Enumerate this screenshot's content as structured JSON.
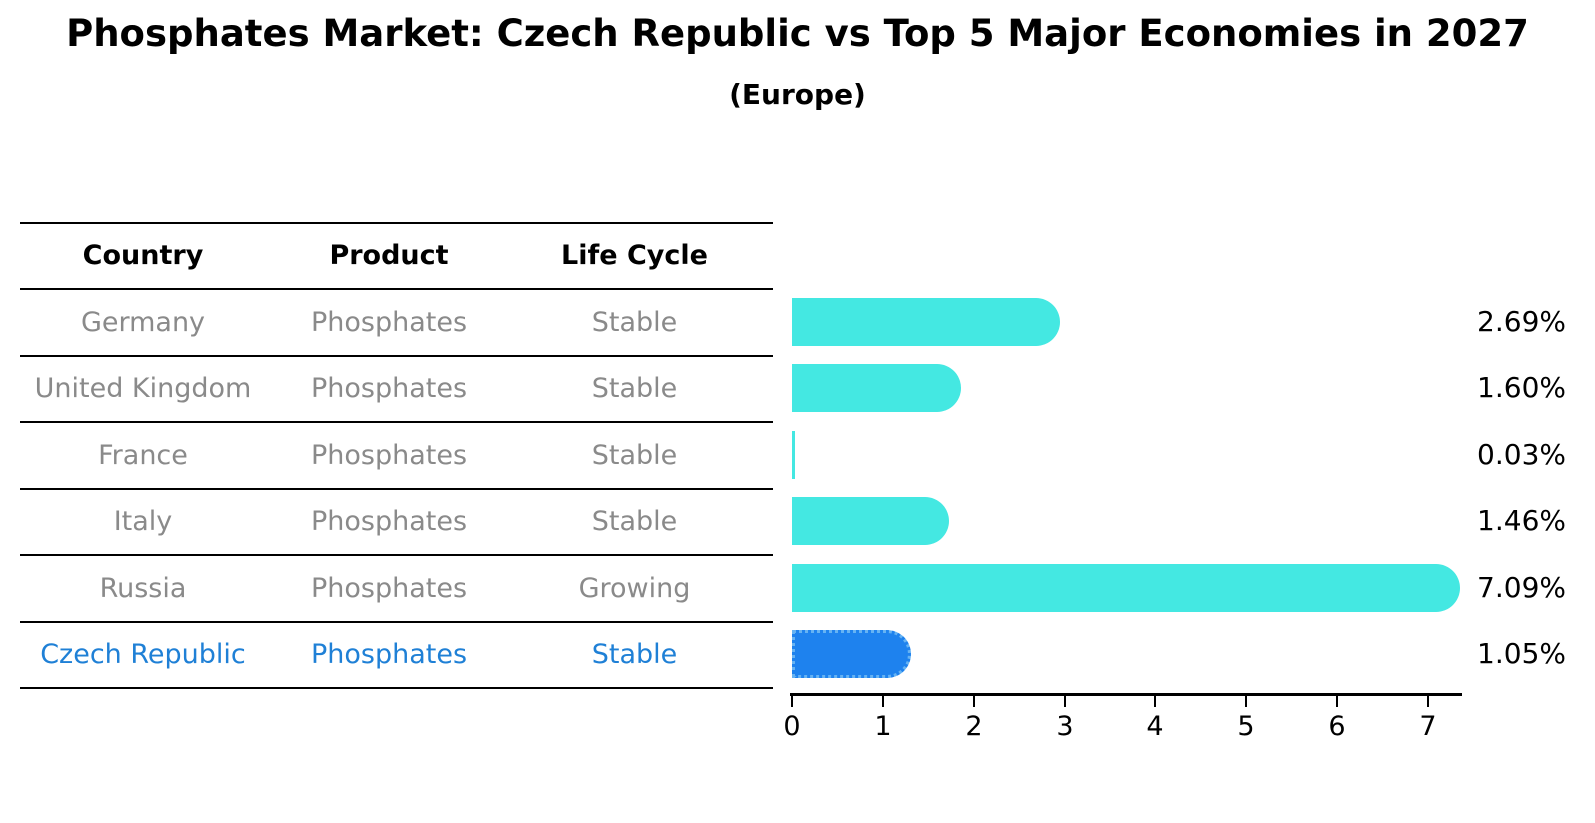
{
  "header": {
    "title": "Phosphates Market: Czech Republic vs Top 5 Major Economies in 2027",
    "subtitle": "(Europe)"
  },
  "table": {
    "columns": [
      "Country",
      "Product",
      "Life Cycle"
    ],
    "rows": [
      {
        "country": "Germany",
        "product": "Phosphates",
        "life_cycle": "Stable",
        "highlight": false
      },
      {
        "country": "United Kingdom",
        "product": "Phosphates",
        "life_cycle": "Stable",
        "highlight": false
      },
      {
        "country": "France",
        "product": "Phosphates",
        "life_cycle": "Stable",
        "highlight": false
      },
      {
        "country": "Italy",
        "product": "Phosphates",
        "life_cycle": "Stable",
        "highlight": false
      },
      {
        "country": "Russia",
        "product": "Phosphates",
        "life_cycle": "Growing",
        "highlight": false
      },
      {
        "country": "Czech Republic",
        "product": "Phosphates",
        "life_cycle": "Stable",
        "highlight": true
      }
    ]
  },
  "chart_data": {
    "type": "bar",
    "orientation": "horizontal",
    "title": "Phosphates Market: Czech Republic vs Top 5 Major Economies in 2027",
    "subtitle": "(Europe)",
    "categories": [
      "Germany",
      "United Kingdom",
      "France",
      "Italy",
      "Russia",
      "Czech Republic"
    ],
    "values": [
      2.69,
      1.6,
      0.03,
      1.46,
      7.09,
      1.05
    ],
    "value_labels": [
      "2.69%",
      "1.60%",
      "0.03%",
      "1.46%",
      "7.09%",
      "1.05%"
    ],
    "x_ticks": [
      "0",
      "1",
      "2",
      "3",
      "4",
      "5",
      "6",
      "7"
    ],
    "xlim": [
      0,
      7.4
    ],
    "highlight_index": 5,
    "bar_color": "#44E8E2",
    "highlight_bar_color": "#1E82EE",
    "highlight_bar_border": "#66B3F3",
    "grid": false,
    "legend": false
  },
  "colors": {
    "row_text": "#8a8a8a",
    "header_text": "#000000",
    "highlight_text": "#1F80D6",
    "axis": "#000000"
  }
}
